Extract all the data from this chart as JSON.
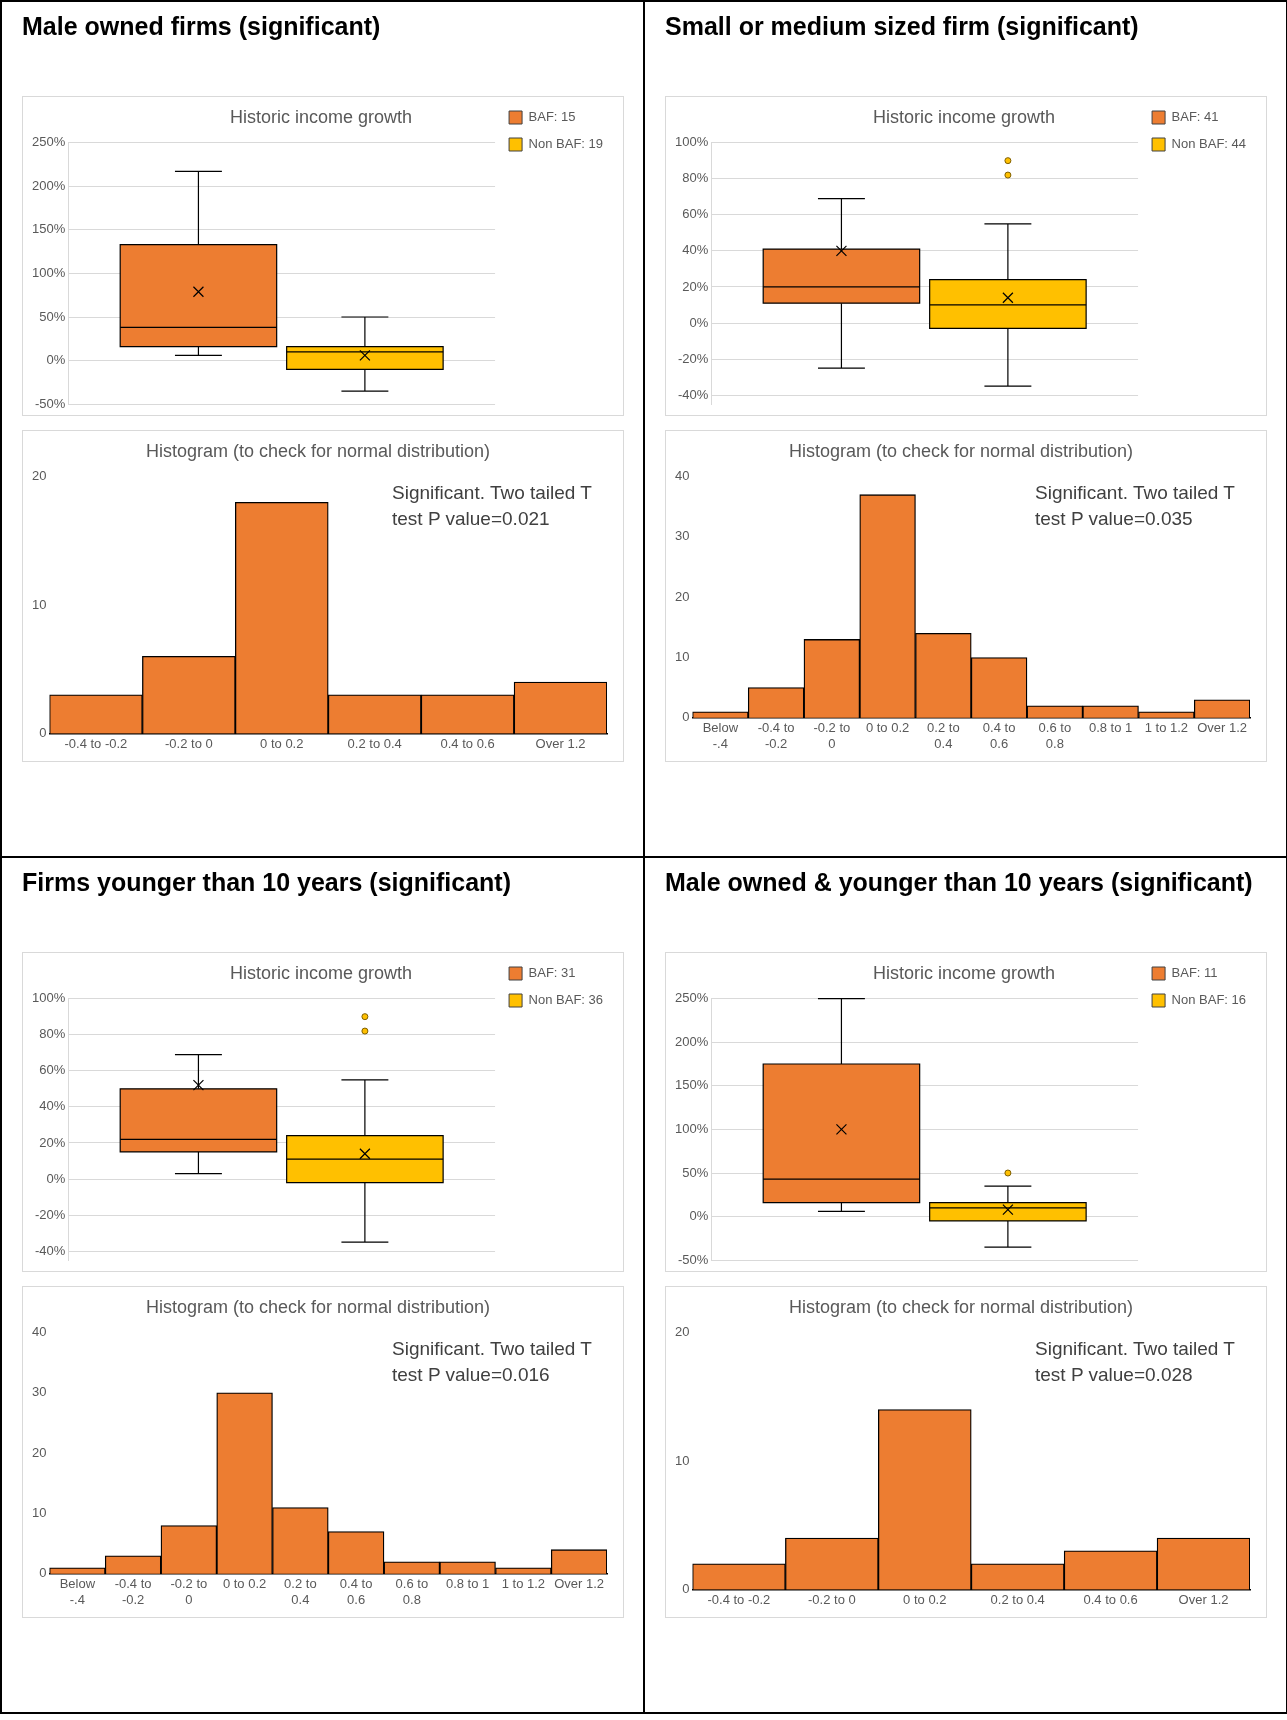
{
  "chart_data": [
    {
      "type": "box",
      "title": "Male owned firms (significant)",
      "subtitle": "Historic income growth",
      "categories": [
        null
      ],
      "series": [
        {
          "name": "BAF: 15",
          "color": "#ed7d31",
          "boxes": [
            {
              "low": 6,
              "q1": 16,
              "median": 38,
              "q3": 133,
              "high": 217,
              "mean": 79
            }
          ]
        },
        {
          "name": "Non BAF: 19",
          "color": "#ffc000",
          "boxes": [
            {
              "low": -35,
              "q1": -10,
              "median": 10,
              "q3": 16,
              "high": 50,
              "mean": 6
            }
          ]
        }
      ],
      "ylim": [
        -50,
        250
      ],
      "yticks": [
        {
          "value": -50,
          "label": "-50%"
        },
        {
          "value": 0,
          "label": "0%"
        },
        {
          "value": 50,
          "label": "50%"
        },
        {
          "value": 100,
          "label": "100%"
        },
        {
          "value": 150,
          "label": "150%"
        },
        {
          "value": 200,
          "label": "200%"
        },
        {
          "value": 250,
          "label": "250%"
        }
      ],
      "grid": "y",
      "legend": "top right",
      "tick_labels": "y"
    },
    {
      "type": "bar",
      "title": "Histogram (to check for normal distribution)",
      "categories": [
        "-0.4 to -0.2",
        "-0.2 to 0",
        "0 to 0.2",
        "0.2 to 0.4",
        "0.4 to 0.6",
        "Over 1.2"
      ],
      "values": [
        3,
        6,
        18,
        3,
        3,
        4
      ],
      "color": "#ed7d31",
      "ylim": [
        0,
        20
      ],
      "yticks": [
        0,
        10,
        20
      ],
      "grid": false,
      "legend": false,
      "annotations": [
        "Significant. Two tailed T test P value=0.021"
      ]
    },
    {
      "type": "box",
      "title": "Small or medium sized firm (significant)",
      "subtitle": "Historic income growth",
      "categories": [
        null
      ],
      "series": [
        {
          "name": "BAF: 41",
          "color": "#ed7d31",
          "boxes": [
            {
              "low": -25,
              "q1": 11,
              "median": 20,
              "q3": 41,
              "high": 69,
              "mean": 40
            }
          ]
        },
        {
          "name": "Non BAF: 44",
          "color": "#ffc000",
          "boxes": [
            {
              "low": -35,
              "q1": -3,
              "median": 10,
              "q3": 24,
              "high": 55,
              "mean": 14,
              "outliers": [
                82,
                90
              ]
            }
          ]
        }
      ],
      "ylim": [
        -45,
        100
      ],
      "yticks": [
        {
          "value": -40,
          "label": "-40%"
        },
        {
          "value": -20,
          "label": "-20%"
        },
        {
          "value": 0,
          "label": "0%"
        },
        {
          "value": 20,
          "label": "20%"
        },
        {
          "value": 40,
          "label": "40%"
        },
        {
          "value": 60,
          "label": "60%"
        },
        {
          "value": 80,
          "label": "80%"
        },
        {
          "value": 100,
          "label": "100%"
        }
      ],
      "grid": "y",
      "legend": "top right",
      "tick_labels": "y"
    },
    {
      "type": "bar",
      "title": "Histogram (to check for normal distribution)",
      "categories": [
        "Below -.4",
        "-0.4 to -0.2",
        "-0.2 to 0",
        "0 to 0.2",
        "0.2 to 0.4",
        "0.4 to 0.6",
        "0.6 to 0.8",
        "0.8 to 1",
        "1 to 1.2",
        "Over 1.2"
      ],
      "values": [
        1,
        5,
        13,
        37,
        14,
        10,
        2,
        2,
        1,
        3
      ],
      "color": "#ed7d31",
      "ylim": [
        0,
        40
      ],
      "yticks": [
        0,
        10,
        20,
        30,
        40
      ],
      "grid": false,
      "legend": false,
      "annotations": [
        "Significant. Two tailed T test P value=0.035"
      ]
    },
    {
      "type": "box",
      "title": "Firms younger than 10 years (significant)",
      "subtitle": "Historic income growth",
      "categories": [
        null
      ],
      "series": [
        {
          "name": "BAF: 31",
          "color": "#ed7d31",
          "boxes": [
            {
              "low": 3,
              "q1": 15,
              "median": 22,
              "q3": 50,
              "high": 69,
              "mean": 52
            }
          ]
        },
        {
          "name": "Non BAF: 36",
          "color": "#ffc000",
          "boxes": [
            {
              "low": -35,
              "q1": -2,
              "median": 11,
              "q3": 24,
              "high": 55,
              "mean": 14,
              "outliers": [
                82,
                90
              ]
            }
          ]
        }
      ],
      "ylim": [
        -45,
        100
      ],
      "yticks": [
        {
          "value": -40,
          "label": "-40%"
        },
        {
          "value": -20,
          "label": "-20%"
        },
        {
          "value": 0,
          "label": "0%"
        },
        {
          "value": 20,
          "label": "20%"
        },
        {
          "value": 40,
          "label": "40%"
        },
        {
          "value": 60,
          "label": "60%"
        },
        {
          "value": 80,
          "label": "80%"
        },
        {
          "value": 100,
          "label": "100%"
        }
      ],
      "grid": "y",
      "legend": "top right",
      "tick_labels": "y"
    },
    {
      "type": "bar",
      "title": "Histogram (to check for normal distribution)",
      "categories": [
        "Below -.4",
        "-0.4 to -0.2",
        "-0.2 to 0",
        "0 to 0.2",
        "0.2 to 0.4",
        "0.4 to 0.6",
        "0.6 to 0.8",
        "0.8 to 1",
        "1 to 1.2",
        "Over 1.2"
      ],
      "values": [
        1,
        3,
        8,
        30,
        11,
        7,
        2,
        2,
        1,
        4
      ],
      "color": "#ed7d31",
      "ylim": [
        0,
        40
      ],
      "yticks": [
        0,
        10,
        20,
        30,
        40
      ],
      "grid": false,
      "legend": false,
      "annotations": [
        "Significant. Two tailed T test P value=0.016"
      ]
    },
    {
      "type": "box",
      "title": "Male owned & younger than 10 years (significant)",
      "subtitle": "Historic income growth",
      "categories": [
        null
      ],
      "series": [
        {
          "name": "BAF: 11",
          "color": "#ed7d31",
          "boxes": [
            {
              "low": 6,
              "q1": 16,
              "median": 43,
              "q3": 175,
              "high": 250,
              "mean": 100
            }
          ]
        },
        {
          "name": "Non BAF: 16",
          "color": "#ffc000",
          "boxes": [
            {
              "low": -35,
              "q1": -5,
              "median": 10,
              "q3": 16,
              "high": 35,
              "mean": 8,
              "outliers": [
                50
              ]
            }
          ]
        }
      ],
      "ylim": [
        -50,
        250
      ],
      "yticks": [
        {
          "value": -50,
          "label": "-50%"
        },
        {
          "value": 0,
          "label": "0%"
        },
        {
          "value": 50,
          "label": "50%"
        },
        {
          "value": 100,
          "label": "100%"
        },
        {
          "value": 150,
          "label": "150%"
        },
        {
          "value": 200,
          "label": "200%"
        },
        {
          "value": 250,
          "label": "250%"
        }
      ],
      "grid": "y",
      "legend": "top right",
      "tick_labels": "y"
    },
    {
      "type": "bar",
      "title": "Histogram (to check for normal distribution)",
      "categories": [
        "-0.4 to -0.2",
        "-0.2 to 0",
        "0 to 0.2",
        "0.2 to 0.4",
        "0.4 to 0.6",
        "Over 1.2"
      ],
      "values": [
        2,
        4,
        14,
        2,
        3,
        4
      ],
      "color": "#ed7d31",
      "ylim": [
        0,
        20
      ],
      "yticks": [
        0,
        10,
        20
      ],
      "grid": false,
      "legend": false,
      "annotations": [
        "Significant. Two tailed T test P value=0.028"
      ]
    }
  ]
}
